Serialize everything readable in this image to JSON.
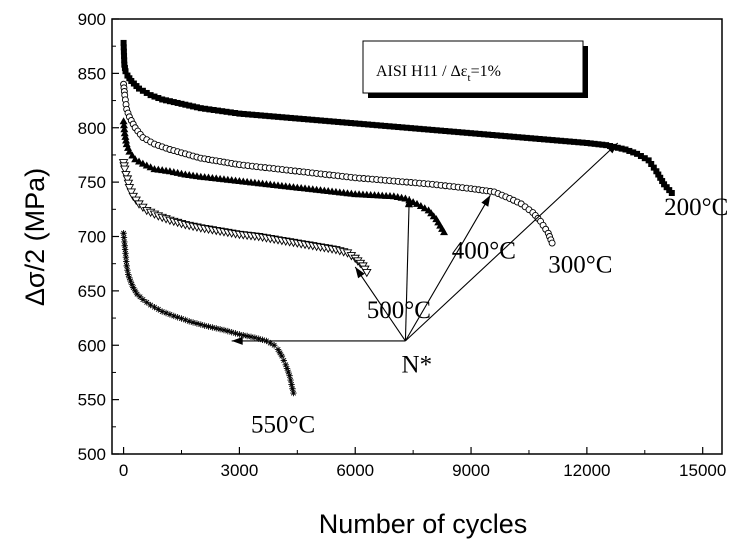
{
  "chart_data": {
    "type": "scatter",
    "xlabel": "Number of cycles",
    "ylabel": "Δσ/2 (MPa)",
    "xlim": [
      -300,
      15500
    ],
    "ylim": [
      500,
      900
    ],
    "xticks": [
      0,
      3000,
      6000,
      9000,
      12000,
      15000
    ],
    "yticks": [
      500,
      550,
      600,
      650,
      700,
      750,
      800,
      850,
      900
    ],
    "legend": {
      "text_main": "AISI H11 / Δε",
      "text_sub": "t",
      "text_tail": "=1%",
      "placement": "top-right"
    },
    "series": [
      {
        "label": "200°C",
        "marker": "filled-square",
        "x": [
          0,
          20,
          50,
          100,
          200,
          400,
          700,
          1000,
          1500,
          2000,
          3000,
          4000,
          5000,
          6000,
          7000,
          8000,
          9000,
          10000,
          11000,
          12000,
          12500,
          13000,
          13300,
          13600,
          13800,
          14000,
          14200
        ],
        "y": [
          878,
          858,
          852,
          848,
          843,
          836,
          830,
          826,
          822,
          818,
          813,
          810,
          807,
          804,
          801,
          798,
          795,
          792,
          789,
          786,
          784,
          780,
          776,
          770,
          760,
          748,
          740
        ]
      },
      {
        "label": "300°C",
        "marker": "open-circle",
        "x": [
          0,
          30,
          80,
          150,
          300,
          500,
          800,
          1200,
          1600,
          2000,
          2500,
          3000,
          4000,
          5000,
          6000,
          7000,
          8000,
          9000,
          9600,
          10000,
          10300,
          10600,
          10800,
          11000,
          11100
        ],
        "y": [
          840,
          830,
          817,
          810,
          800,
          791,
          785,
          780,
          776,
          772,
          769,
          766,
          762,
          758,
          754,
          751,
          748,
          744,
          741,
          735,
          730,
          722,
          714,
          703,
          694
        ]
      },
      {
        "label": "400°C",
        "marker": "filled-triangle",
        "x": [
          0,
          30,
          80,
          150,
          300,
          500,
          800,
          1200,
          1600,
          2000,
          2500,
          3000,
          3500,
          4000,
          4500,
          5000,
          5500,
          6000,
          6500,
          7000,
          7300,
          7600,
          7900,
          8100,
          8300
        ],
        "y": [
          806,
          795,
          785,
          778,
          771,
          767,
          762,
          760,
          757,
          755,
          753,
          751,
          749,
          747,
          745,
          743,
          741,
          739,
          738,
          737,
          735,
          730,
          724,
          716,
          704
        ]
      },
      {
        "label": "500°C",
        "marker": "open-triangle-down",
        "x": [
          0,
          30,
          60,
          100,
          150,
          250,
          400,
          600,
          900,
          1200,
          1600,
          2000,
          2500,
          3000,
          3500,
          4000,
          4500,
          5000,
          5500,
          5800,
          6000,
          6200,
          6300
        ],
        "y": [
          768,
          762,
          757,
          753,
          745,
          737,
          730,
          724,
          719,
          715,
          711,
          708,
          705,
          702,
          700,
          697,
          694,
          691,
          688,
          685,
          680,
          673,
          667
        ]
      },
      {
        "label": "550°C",
        "marker": "asterisk",
        "x": [
          0,
          20,
          40,
          60,
          80,
          120,
          180,
          250,
          350,
          500,
          700,
          1000,
          1300,
          1700,
          2100,
          2600,
          3000,
          3400,
          3700,
          3900,
          4000,
          4100,
          4200,
          4300,
          4400
        ],
        "y": [
          703,
          695,
          688,
          681,
          673,
          665,
          659,
          653,
          647,
          642,
          637,
          631,
          627,
          622,
          618,
          614,
          610,
          607,
          604,
          600,
          596,
          590,
          582,
          572,
          556
        ]
      }
    ],
    "annotations": [
      {
        "id": "nstar",
        "text": "N*",
        "x": 7200,
        "y": 575
      },
      {
        "id": "t200",
        "text": "200°C",
        "x": 14000,
        "y": 720
      },
      {
        "id": "t300",
        "text": "300°C",
        "x": 11000,
        "y": 667
      },
      {
        "id": "t400",
        "text": "400°C",
        "x": 8500,
        "y": 680
      },
      {
        "id": "t500",
        "text": "500°C",
        "x": 6300,
        "y": 625
      },
      {
        "id": "t550",
        "text": "550°C",
        "x": 3300,
        "y": 520
      }
    ],
    "arrows": {
      "origin": {
        "x": 7300,
        "y": 604
      },
      "targets": [
        {
          "x": 2800,
          "y": 604
        },
        {
          "x": 6000,
          "y": 672
        },
        {
          "x": 7400,
          "y": 737
        },
        {
          "x": 9500,
          "y": 738
        },
        {
          "x": 12800,
          "y": 786
        }
      ]
    }
  }
}
